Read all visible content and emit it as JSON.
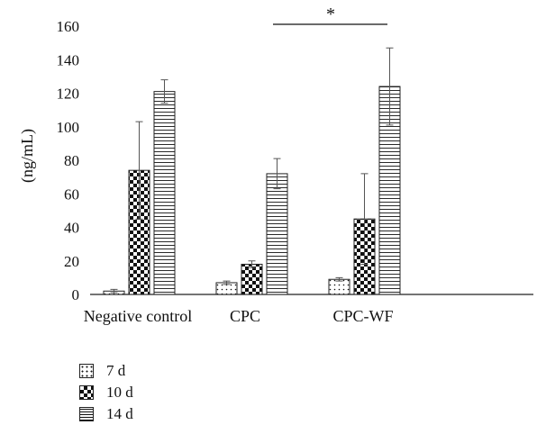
{
  "chart_data": {
    "type": "bar",
    "title": "",
    "xlabel": "",
    "ylabel": "(ng/mL)",
    "ylim": [
      0,
      160
    ],
    "yticks": [
      0,
      20,
      40,
      60,
      80,
      100,
      120,
      140,
      160
    ],
    "categories": [
      "Negative control",
      "CPC",
      "CPC-WF"
    ],
    "series": [
      {
        "name": "7 d",
        "pattern": "dots",
        "values": [
          2,
          7,
          9
        ],
        "errors": [
          1,
          1,
          1
        ]
      },
      {
        "name": "10 d",
        "pattern": "checkerboard",
        "values": [
          74,
          18,
          45
        ],
        "errors": [
          29,
          2,
          27
        ]
      },
      {
        "name": "14 d",
        "pattern": "hlines",
        "values": [
          121,
          72,
          124
        ],
        "errors": [
          7,
          9,
          23
        ]
      }
    ],
    "annotations": [
      {
        "text": "*",
        "between": [
          "CPC",
          "CPC-WF"
        ]
      }
    ],
    "grid": false,
    "legend_position": "bottom-left"
  }
}
